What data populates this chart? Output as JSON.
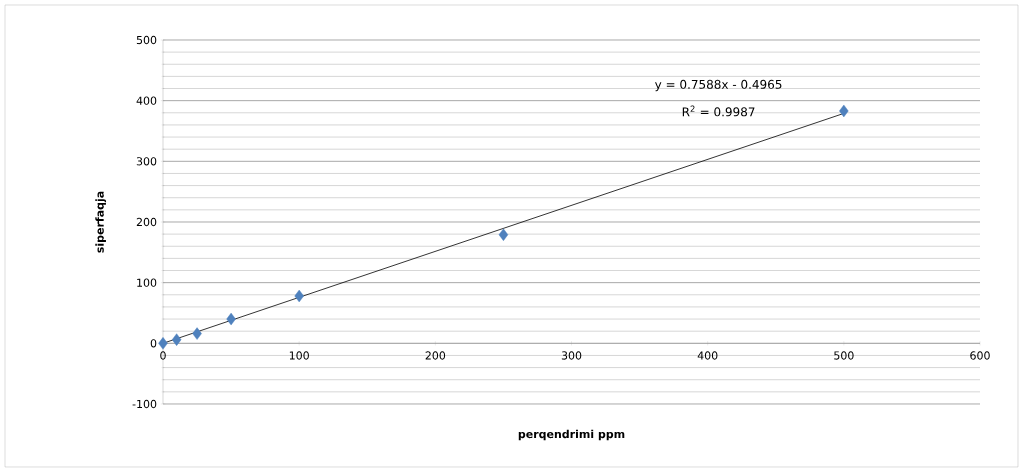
{
  "chart_data": {
    "type": "scatter",
    "xlabel": "perqendrimi ppm",
    "ylabel": "siperfaqja",
    "series": [
      {
        "color": "#4f81bd",
        "marker": "diamond",
        "x": [
          0,
          10,
          25,
          50,
          100,
          250,
          500
        ],
        "values": [
          0,
          6,
          16,
          40,
          78,
          179,
          383
        ]
      },
      {
        "type": "line",
        "color": "#000000",
        "marker": "none",
        "x": [
          0,
          500
        ],
        "values": [
          0,
          379
        ]
      }
    ],
    "annotations": [
      "y = 0.7588x - 0.4965",
      "R$^{2}$ = 0.9987"
    ],
    "xlim": [
      0,
      600
    ],
    "xticks": [
      0,
      100,
      200,
      300,
      400,
      500,
      600
    ],
    "ylim": [
      -100,
      500
    ],
    "yticks": [
      -100,
      0,
      100,
      200,
      300,
      400,
      500
    ],
    "grid": "y"
  }
}
